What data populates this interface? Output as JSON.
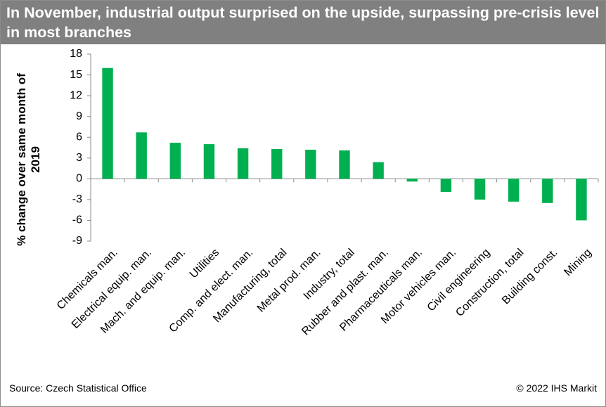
{
  "chart_data": {
    "type": "bar",
    "title": "In November, industrial output surprised on the upside, surpassing pre-crisis level in most branches",
    "y_label": "% change over same month of 2019",
    "categories": [
      "Chemicals man.",
      "Electrical equip. man.",
      "Mach. and equip. man.",
      "Utilities",
      "Comp. and elect. man.",
      "Manufacturing, total",
      "Metal prod. man.",
      "Industry, total",
      "Rubber and plast. man.",
      "Pharmaceuticals man.",
      "Motor vehicles man.",
      "Civil engineering",
      "Construction, total",
      "Building const.",
      "Mining"
    ],
    "values": [
      16.0,
      6.7,
      5.2,
      5.0,
      4.4,
      4.3,
      4.2,
      4.1,
      2.4,
      -0.4,
      -1.9,
      -3.0,
      -3.3,
      -3.5,
      -6.0
    ],
    "color": "#00b050",
    "ylim": [
      -9,
      18
    ],
    "yticks": [
      -9,
      -6,
      -3,
      0,
      3,
      6,
      9,
      12,
      15,
      18
    ],
    "grid": false,
    "source": "Source: Czech Statistical Office",
    "copyright": "© 2022 IHS Markit"
  }
}
